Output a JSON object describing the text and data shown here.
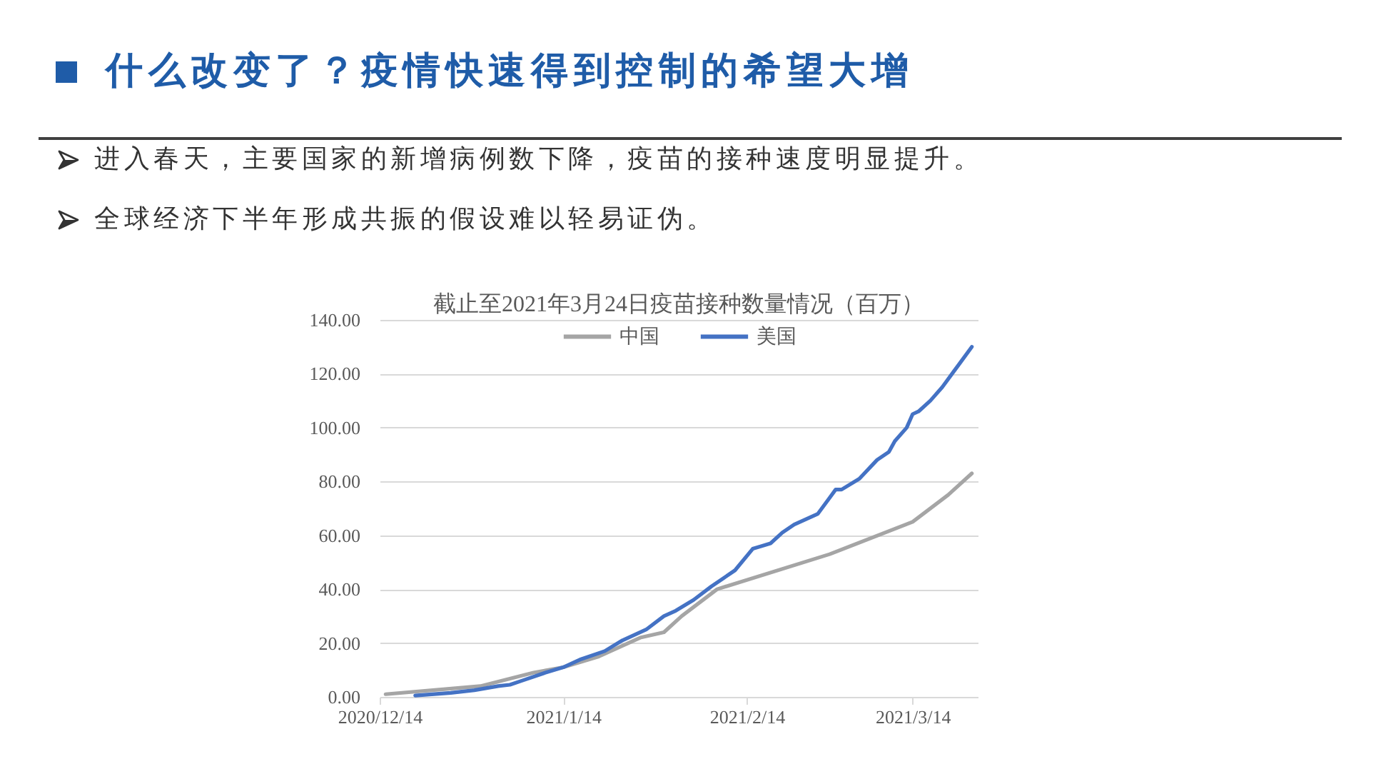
{
  "chart_data": {
    "type": "line",
    "title": "什么改变了？疫情快速得到控制的希望大增",
    "subtitle": "截止至2021年3月24日疫苗接种数量情况（百万）",
    "annotations": [
      "进入春天，主要国家的新增病例数下降，疫苗的接种速度明显提升。",
      "全球经济下半年形成共振的假设难以轻易证伪。"
    ],
    "xlim": [
      "2020-12-14",
      "2021-03-25"
    ],
    "xticks": [
      {
        "value": "2020-12-14",
        "label": "2020/12/14"
      },
      {
        "value": "2021-01-14",
        "label": "2021/1/14"
      },
      {
        "value": "2021-02-14",
        "label": "2021/2/14"
      },
      {
        "value": "2021-03-14",
        "label": "2021/3/14"
      }
    ],
    "ylim": [
      0,
      140
    ],
    "yticks": [
      {
        "value": 0,
        "label": "0.00"
      },
      {
        "value": 20,
        "label": "20.00"
      },
      {
        "value": 40,
        "label": "40.00"
      },
      {
        "value": 60,
        "label": "60.00"
      },
      {
        "value": 80,
        "label": "80.00"
      },
      {
        "value": 100,
        "label": "100.00"
      },
      {
        "value": 120,
        "label": "120.00"
      },
      {
        "value": 140,
        "label": "140.00"
      }
    ],
    "grid": "y",
    "legend": "top",
    "series": [
      {
        "name": "中国",
        "color": "#a5a5a5",
        "x": [
          "2020-12-15",
          "2020-12-31",
          "2021-01-09",
          "2021-01-14",
          "2021-01-20",
          "2021-01-27",
          "2021-01-31",
          "2021-02-03",
          "2021-02-09",
          "2021-02-28",
          "2021-03-14",
          "2021-03-20",
          "2021-03-24"
        ],
        "values": [
          1,
          4,
          9,
          11,
          15,
          22,
          24,
          30,
          40,
          53,
          65,
          75,
          83
        ]
      },
      {
        "name": "美国",
        "color": "#4472c4",
        "x": [
          "2020-12-20",
          "2020-12-26",
          "2020-12-30",
          "2021-01-03",
          "2021-01-05",
          "2021-01-07",
          "2021-01-11",
          "2021-01-14",
          "2021-01-17",
          "2021-01-21",
          "2021-01-24",
          "2021-01-28",
          "2021-01-31",
          "2021-02-02",
          "2021-02-05",
          "2021-02-08",
          "2021-02-10",
          "2021-02-12",
          "2021-02-15",
          "2021-02-18",
          "2021-02-20",
          "2021-02-22",
          "2021-02-24",
          "2021-02-26",
          "2021-02-28",
          "2021-03-01",
          "2021-03-02",
          "2021-03-05",
          "2021-03-08",
          "2021-03-10",
          "2021-03-11",
          "2021-03-13",
          "2021-03-14",
          "2021-03-15",
          "2021-03-17",
          "2021-03-19",
          "2021-03-21",
          "2021-03-22",
          "2021-03-24"
        ],
        "values": [
          0.5,
          1.5,
          2.5,
          4,
          4.5,
          6,
          9,
          11,
          14,
          17,
          21,
          25,
          30,
          32,
          36,
          41,
          44,
          47,
          55,
          57,
          61,
          64,
          66,
          68,
          74,
          77,
          77,
          81,
          88,
          91,
          95,
          100,
          105,
          106,
          110,
          115,
          121,
          124,
          130
        ]
      }
    ]
  }
}
